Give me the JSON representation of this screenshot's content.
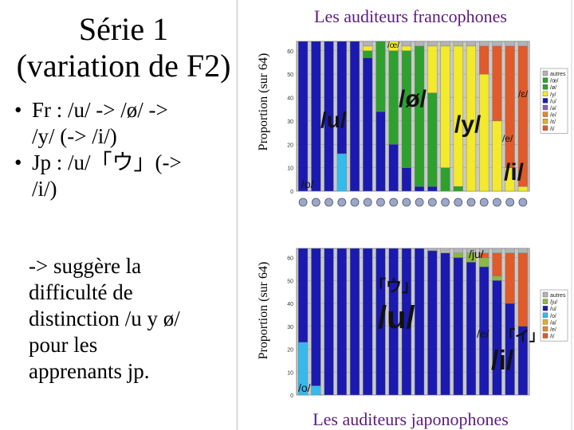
{
  "slide": {
    "title_line1": "Série 1",
    "title_line2": "(variation de F2)",
    "bullet1_line1": "Fr : /u/ -> /ø/ ->",
    "bullet1_line2": "/y/ (-> /i/)",
    "bullet2_line1": "Jp : /u/「ウ」(->",
    "bullet2_line2": "/i/)",
    "note_lines": [
      "-> suggère la",
      "difficulté de",
      "distinction /u y ø/",
      "pour les",
      "apprenants jp."
    ]
  },
  "colors": {
    "heading": "#5b1b7c",
    "u": "#1a1ab0",
    "oe": "#2ea02e",
    "y": "#f2ea2a",
    "i": "#e05a2a",
    "o": "#33bbee",
    "ju": "#8ab840",
    "autres": "#b4b4b4"
  },
  "chart_data": [
    {
      "type": "bar",
      "stacked": true,
      "title": "Les auditeurs francophones",
      "ylabel": "Proportion (sur 64)",
      "ylim": [
        0,
        64
      ],
      "yticks": [
        "0",
        "10",
        "20",
        "30",
        "40",
        "50",
        "60"
      ],
      "legend": [
        "autres",
        "/œ/",
        "/ø/",
        "/y/",
        "/u/",
        "/ə/",
        "/e/",
        "/ɛ/",
        "/i/"
      ],
      "annotations": [
        "/u/",
        "/ø/",
        "/y/",
        "/i/",
        "/o/",
        "/œ/",
        "/ɛ/",
        "/e/"
      ],
      "series_order": [
        "o",
        "u",
        "oe",
        "y",
        "i",
        "autres"
      ],
      "bars": [
        {
          "o": 0,
          "u": 64,
          "oe": 0,
          "y": 0,
          "i": 0,
          "autres": 0
        },
        {
          "o": 0,
          "u": 64,
          "oe": 0,
          "y": 0,
          "i": 0,
          "autres": 0
        },
        {
          "o": 0,
          "u": 64,
          "oe": 0,
          "y": 0,
          "i": 0,
          "autres": 0
        },
        {
          "o": 16,
          "u": 48,
          "oe": 0,
          "y": 0,
          "i": 0,
          "autres": 0
        },
        {
          "o": 0,
          "u": 64,
          "oe": 0,
          "y": 0,
          "i": 0,
          "autres": 0
        },
        {
          "o": 0,
          "u": 57,
          "oe": 3,
          "y": 2,
          "i": 0,
          "autres": 2
        },
        {
          "o": 0,
          "u": 34,
          "oe": 30,
          "y": 0,
          "i": 0,
          "autres": 0
        },
        {
          "o": 0,
          "u": 20,
          "oe": 40,
          "y": 4,
          "i": 0,
          "autres": 0
        },
        {
          "o": 0,
          "u": 10,
          "oe": 50,
          "y": 2,
          "i": 0,
          "autres": 2
        },
        {
          "o": 0,
          "u": 2,
          "oe": 60,
          "y": 0,
          "i": 0,
          "autres": 2
        },
        {
          "o": 0,
          "u": 2,
          "oe": 40,
          "y": 20,
          "i": 0,
          "autres": 2
        },
        {
          "o": 0,
          "u": 0,
          "oe": 10,
          "y": 52,
          "i": 0,
          "autres": 2
        },
        {
          "o": 0,
          "u": 0,
          "oe": 2,
          "y": 60,
          "i": 0,
          "autres": 2
        },
        {
          "o": 0,
          "u": 0,
          "oe": 0,
          "y": 62,
          "i": 0,
          "autres": 2
        },
        {
          "o": 0,
          "u": 0,
          "oe": 0,
          "y": 50,
          "i": 12,
          "autres": 2
        },
        {
          "o": 0,
          "u": 0,
          "oe": 0,
          "y": 30,
          "i": 32,
          "autres": 2
        },
        {
          "o": 0,
          "u": 0,
          "oe": 0,
          "y": 10,
          "i": 52,
          "autres": 2
        },
        {
          "o": 0,
          "u": 0,
          "oe": 0,
          "y": 2,
          "i": 60,
          "autres": 2
        }
      ]
    },
    {
      "type": "bar",
      "stacked": true,
      "title": "Les auditeurs japonophones",
      "ylabel": "Proportion (sur 64)",
      "ylim": [
        0,
        64
      ],
      "yticks": [
        "0",
        "10",
        "20",
        "30",
        "40",
        "50",
        "60"
      ],
      "legend": [
        "autres",
        "/ju/",
        "/u/",
        "/o/",
        "/a/",
        "/e/",
        "/i/"
      ],
      "annotations": [
        "/ju/",
        "「ウ」",
        "/u/",
        "/e/",
        "「イ」",
        "/i/",
        "/o/"
      ],
      "series_order": [
        "o",
        "u",
        "ju",
        "i",
        "autres"
      ],
      "bars": [
        {
          "o": 23,
          "u": 41,
          "ju": 0,
          "i": 0,
          "autres": 0
        },
        {
          "o": 4,
          "u": 60,
          "ju": 0,
          "i": 0,
          "autres": 0
        },
        {
          "o": 0,
          "u": 64,
          "ju": 0,
          "i": 0,
          "autres": 0
        },
        {
          "o": 0,
          "u": 64,
          "ju": 0,
          "i": 0,
          "autres": 0
        },
        {
          "o": 0,
          "u": 64,
          "ju": 0,
          "i": 0,
          "autres": 0
        },
        {
          "o": 0,
          "u": 64,
          "ju": 0,
          "i": 0,
          "autres": 0
        },
        {
          "o": 0,
          "u": 64,
          "ju": 0,
          "i": 0,
          "autres": 0
        },
        {
          "o": 0,
          "u": 64,
          "ju": 0,
          "i": 0,
          "autres": 0
        },
        {
          "o": 0,
          "u": 64,
          "ju": 0,
          "i": 0,
          "autres": 0
        },
        {
          "o": 0,
          "u": 64,
          "ju": 0,
          "i": 0,
          "autres": 0
        },
        {
          "o": 0,
          "u": 63,
          "ju": 0,
          "i": 0,
          "autres": 1
        },
        {
          "o": 0,
          "u": 62,
          "ju": 0,
          "i": 0,
          "autres": 2
        },
        {
          "o": 0,
          "u": 60,
          "ju": 2,
          "i": 0,
          "autres": 2
        },
        {
          "o": 0,
          "u": 58,
          "ju": 4,
          "i": 0,
          "autres": 2
        },
        {
          "o": 0,
          "u": 56,
          "ju": 4,
          "i": 2,
          "autres": 2
        },
        {
          "o": 0,
          "u": 50,
          "ju": 2,
          "i": 10,
          "autres": 2
        },
        {
          "o": 0,
          "u": 40,
          "ju": 0,
          "i": 22,
          "autres": 2
        },
        {
          "o": 0,
          "u": 30,
          "ju": 0,
          "i": 32,
          "autres": 2
        }
      ]
    }
  ]
}
